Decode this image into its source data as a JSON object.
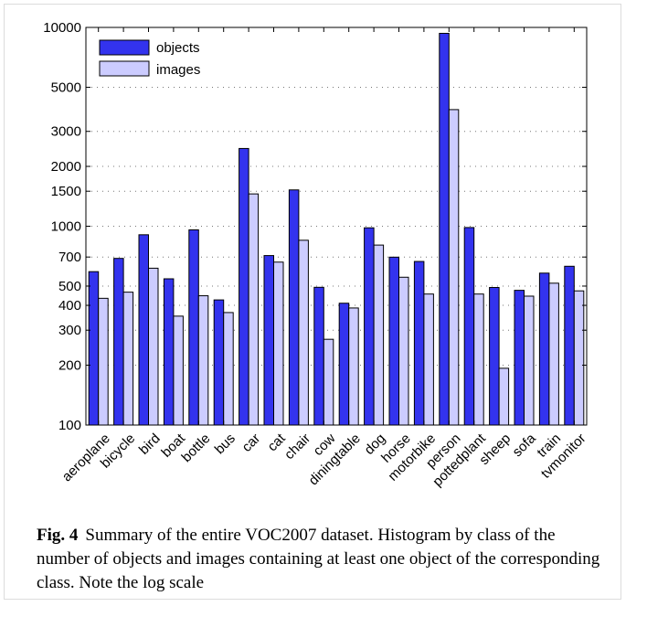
{
  "chart_data": {
    "type": "bar",
    "scale": "log",
    "ylim": [
      100,
      10000
    ],
    "yticks": [
      "100",
      "200",
      "300",
      "400",
      "500",
      "700",
      "1000",
      "1500",
      "2000",
      "3000",
      "5000",
      "10000"
    ],
    "ytick_values": [
      100,
      200,
      300,
      400,
      500,
      700,
      1000,
      1500,
      2000,
      3000,
      5000,
      10000
    ],
    "grid": "dotted horizontal",
    "legend_position": "top-left",
    "categories": [
      "aeroplane",
      "bicycle",
      "bird",
      "boat",
      "bottle",
      "bus",
      "car",
      "cat",
      "chair",
      "cow",
      "diningtable",
      "dog",
      "horse",
      "motorbike",
      "person",
      "pottedplant",
      "sheep",
      "sofa",
      "train",
      "tvmonitor"
    ],
    "series": [
      {
        "name": "objects",
        "color": "#3333ee",
        "values": [
          591,
          689,
          906,
          544,
          959,
          426,
          2461,
          712,
          1523,
          493,
          410,
          982,
          699,
          665,
          9338,
          985,
          492,
          476,
          581,
          629
        ]
      },
      {
        "name": "images",
        "color": "#ccccff",
        "values": [
          434,
          466,
          615,
          353,
          447,
          368,
          1454,
          660,
          850,
          270,
          388,
          804,
          554,
          456,
          3860,
          456,
          193,
          445,
          517,
          473
        ]
      }
    ]
  },
  "caption": {
    "label": "Fig. 4",
    "text": "Summary of the entire VOC2007 dataset. Histogram by class of the number of objects and images containing at least one object of the corresponding class. Note the log scale"
  }
}
